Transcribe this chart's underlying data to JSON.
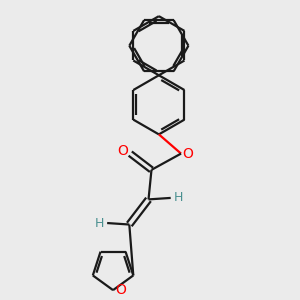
{
  "background_color": "#ebebeb",
  "bond_color": "#1a1a1a",
  "oxygen_color": "#ff0000",
  "hydrogen_color": "#4a9090",
  "line_width": 1.6,
  "figsize": [
    3.0,
    3.0
  ],
  "dpi": 100,
  "xlim": [
    -3.5,
    3.5
  ],
  "ylim": [
    -4.5,
    5.5
  ]
}
